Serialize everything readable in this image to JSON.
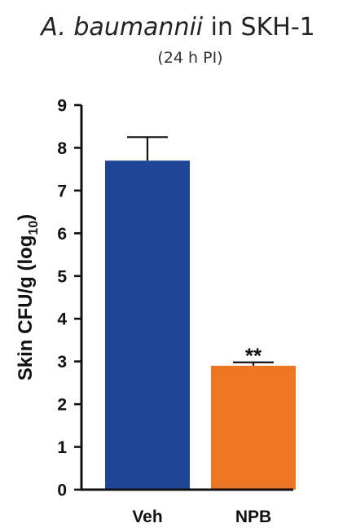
{
  "title": {
    "species": "A. baumannii",
    "rest": " in SKH-1"
  },
  "subtitle": "(24 h PI)",
  "chart_data": {
    "type": "bar",
    "categories": [
      "Veh",
      "NPB"
    ],
    "values": [
      7.7,
      2.9
    ],
    "error_upper": [
      8.25,
      2.98
    ],
    "colors": [
      "#1f4597",
      "#ec7623"
    ],
    "annotations": [
      "",
      "**"
    ],
    "ylabel": {
      "main": "Skin CFU/g (log",
      "sub": "10",
      "close": ")"
    },
    "ylim": [
      0,
      9
    ],
    "yticks": [
      "0",
      "1",
      "2",
      "3",
      "4",
      "5",
      "6",
      "7",
      "8",
      "9"
    ],
    "grid": false
  }
}
